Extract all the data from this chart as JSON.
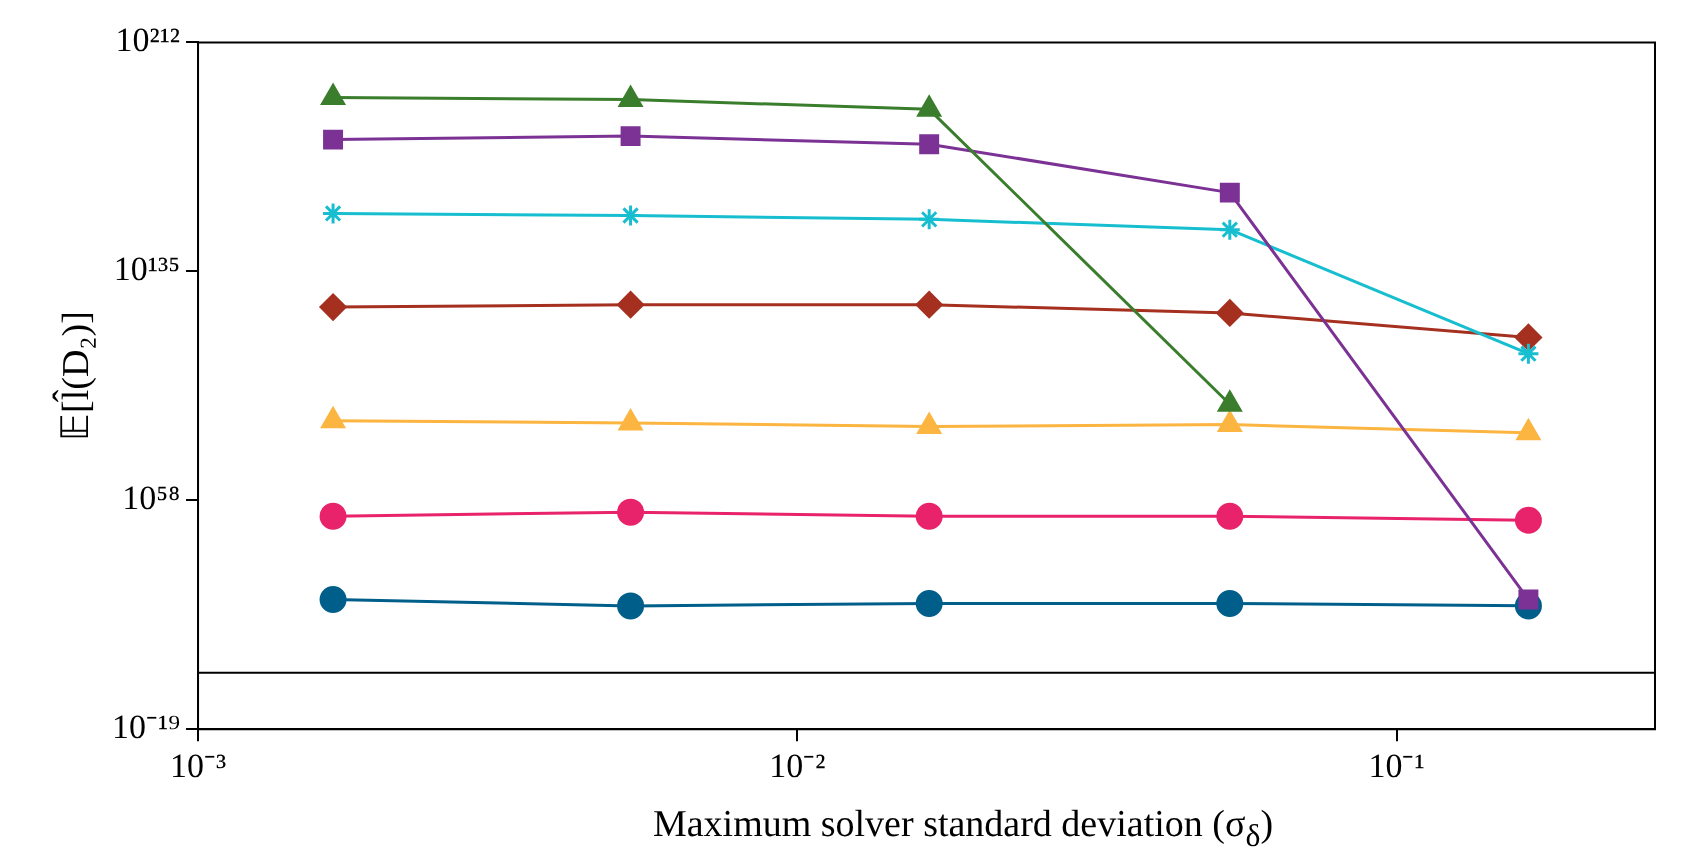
{
  "chart_data": {
    "type": "line",
    "xlabel": "Maximum solver standard deviation (σ$_{δ}$)",
    "ylabel": "𝔼[l̂(D₂)]",
    "log": "xy",
    "x": [
      0.00168,
      0.00527,
      0.0166,
      0.0527,
      0.166
    ],
    "xlim": [
      0.001,
      0.27
    ],
    "xticks": [
      {
        "value": 0.001,
        "label": "10⁻³"
      },
      {
        "value": 0.01,
        "label": "10⁻²"
      },
      {
        "value": 0.1,
        "label": "10⁻¹"
      }
    ],
    "ylim": [
      1e-19,
      1e+212
    ],
    "yticks": [
      {
        "value": 1e-19,
        "label": "10⁻¹⁹"
      },
      {
        "value": 1e+58,
        "label": "10⁵⁸"
      },
      {
        "value": 1e+135,
        "label": "10¹³⁵"
      },
      {
        "value": 1e+212,
        "label": "10²¹²"
      }
    ],
    "grid": false,
    "legend": false,
    "line_style": "solid",
    "series": [
      {
        "color": "#3a7d2c",
        "marker": "triangle",
        "values": [
          3e+193,
          6e+192,
          3e+189,
          2e+90,
          null
        ]
      },
      {
        "color": "#7b3294",
        "marker": "square",
        "values": [
          2e+179,
          3e+180,
          6e+177,
          3e+161,
          4e+24
        ]
      },
      {
        "color": "#17becf",
        "marker": "cross",
        "values": [
          3e+154,
          6e+153,
          3e+152,
          1e+149,
          2e+107
        ]
      },
      {
        "color": "#a5301f",
        "marker": "diamond",
        "values": [
          1e+123,
          6e+123,
          6e+123,
          1e+121,
          6e+112
        ]
      },
      {
        "color": "#fbb540",
        "marker": "triangle",
        "values": [
          6e+84,
          1e+84,
          6e+82,
          3e+83,
          5e+80
        ]
      },
      {
        "color": "#e8236b",
        "marker": "circle",
        "values": [
          4e+52,
          1e+54,
          4e+52,
          4e+52,
          2e+51
        ]
      },
      {
        "color": "#005f8a",
        "marker": "circle",
        "values": [
          4e+24,
          3e+22,
          2e+23,
          2e+23,
          3e+22
        ]
      }
    ],
    "ref_lines": [
      {
        "axis": "y",
        "value": 1,
        "color": "#000000"
      }
    ]
  }
}
